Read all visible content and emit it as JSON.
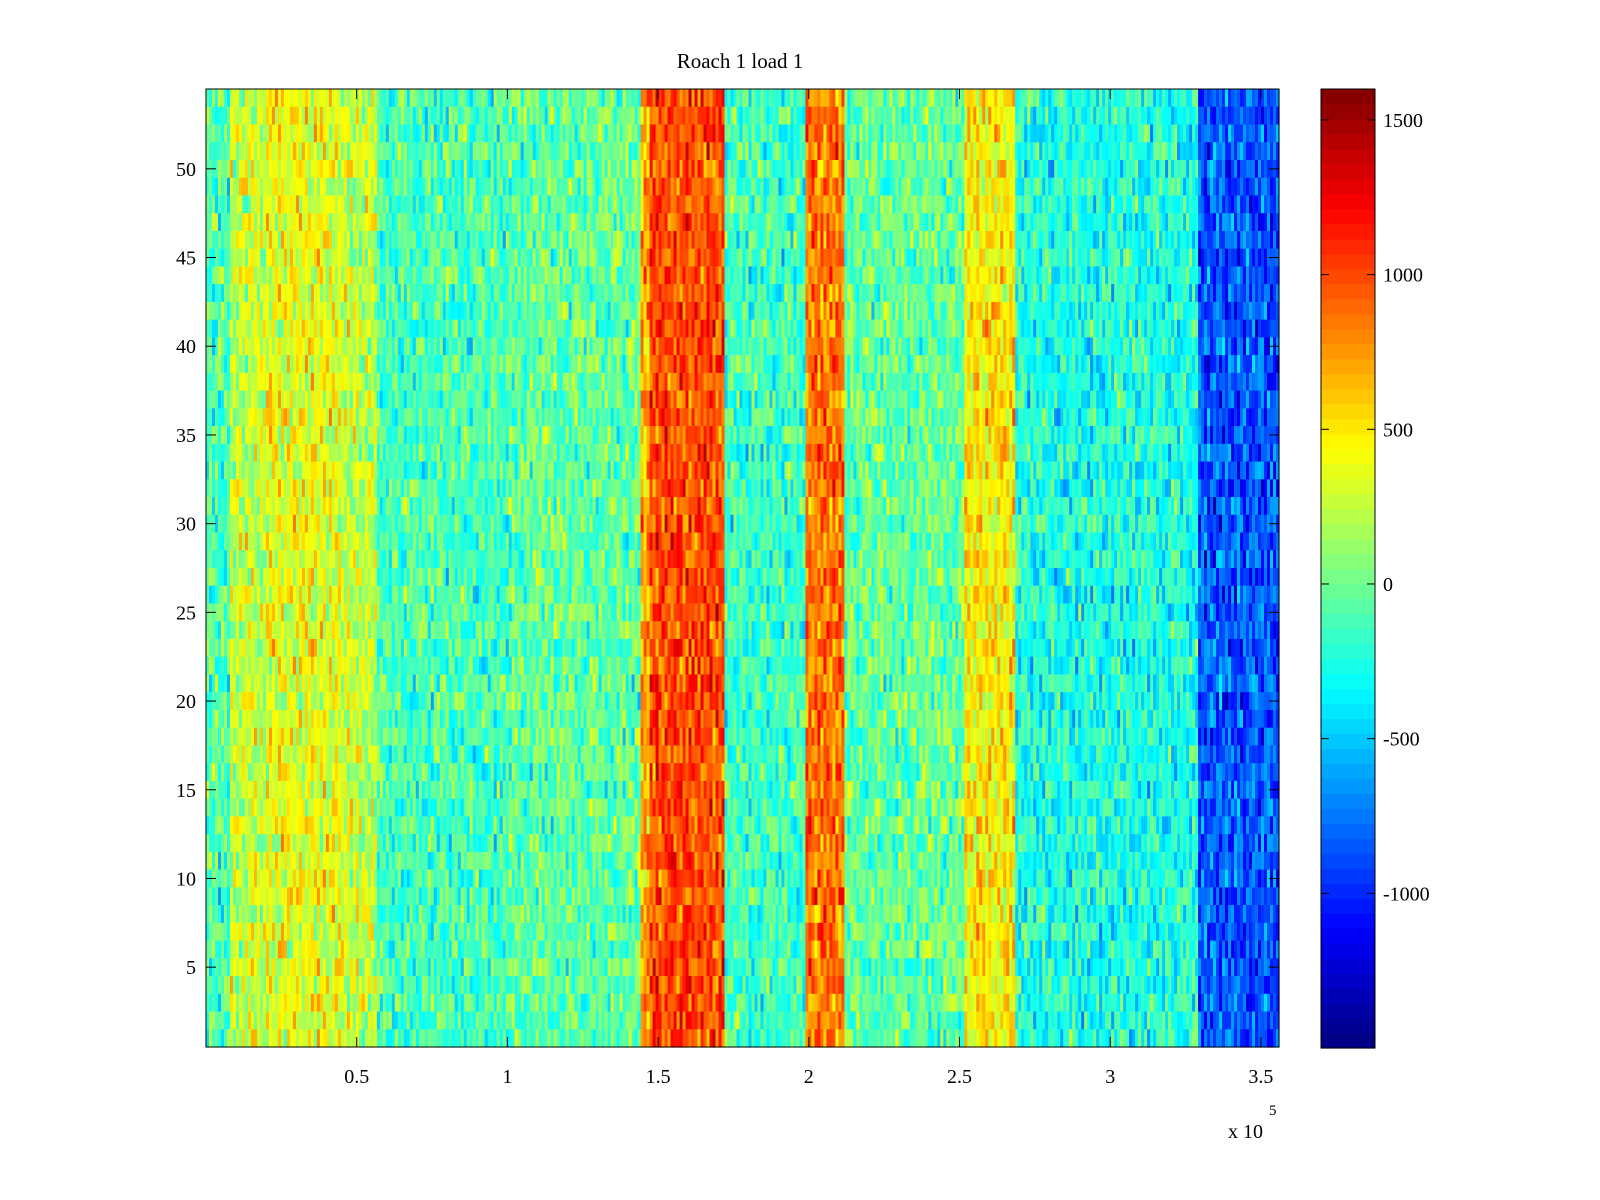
{
  "chart_data": {
    "type": "heatmap",
    "title": "Roach 1 load 1",
    "xlabel": "",
    "ylabel": "",
    "xlim": [
      0,
      356000
    ],
    "ylim": [
      0.5,
      54.5
    ],
    "x_ticks": [
      0.5,
      1,
      1.5,
      2,
      2.5,
      3,
      3.5
    ],
    "x_tick_labels": [
      "0.5",
      "1",
      "1.5",
      "2",
      "2.5",
      "3",
      "3.5"
    ],
    "x_exponent_label": "x 10",
    "x_exponent_power": "5",
    "x_multiplier": 100000,
    "y_ticks": [
      5,
      10,
      15,
      20,
      25,
      30,
      35,
      40,
      45,
      50
    ],
    "y_tick_labels": [
      "5",
      "10",
      "15",
      "20",
      "25",
      "30",
      "35",
      "40",
      "45",
      "50"
    ],
    "rows": 54,
    "colorbar": {
      "colormap": "jet",
      "clim": [
        -1500,
        1600
      ],
      "ticks": [
        -1000,
        -500,
        0,
        500,
        1000,
        1500
      ],
      "tick_labels": [
        "-1000",
        "-500",
        "0",
        "500",
        "1000",
        "1500"
      ]
    },
    "column_bands": [
      {
        "x_start": 0,
        "x_end": 8000,
        "mean_value": -100
      },
      {
        "x_start": 8000,
        "x_end": 20000,
        "mean_value": 250
      },
      {
        "x_start": 20000,
        "x_end": 45000,
        "mean_value": 380
      },
      {
        "x_start": 45000,
        "x_end": 57000,
        "mean_value": 250
      },
      {
        "x_start": 57000,
        "x_end": 100000,
        "mean_value": -120
      },
      {
        "x_start": 100000,
        "x_end": 144000,
        "mean_value": -40
      },
      {
        "x_start": 144000,
        "x_end": 147000,
        "mean_value": 700
      },
      {
        "x_start": 147000,
        "x_end": 172000,
        "mean_value": 1000
      },
      {
        "x_start": 172000,
        "x_end": 199000,
        "mean_value": -150
      },
      {
        "x_start": 199000,
        "x_end": 212000,
        "mean_value": 850
      },
      {
        "x_start": 212000,
        "x_end": 252000,
        "mean_value": -30
      },
      {
        "x_start": 252000,
        "x_end": 268000,
        "mean_value": 480
      },
      {
        "x_start": 268000,
        "x_end": 329000,
        "mean_value": -250
      },
      {
        "x_start": 329000,
        "x_end": 356000,
        "mean_value": -850
      }
    ],
    "noise_amplitude": 320
  }
}
